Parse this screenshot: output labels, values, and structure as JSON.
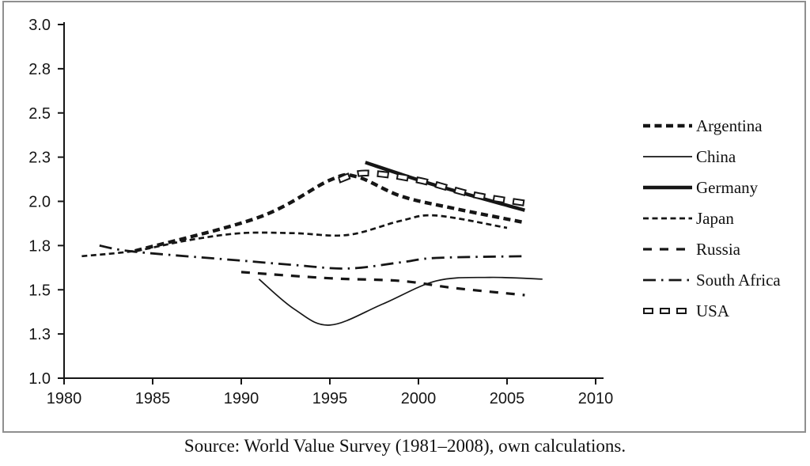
{
  "page": {
    "background": "#ffffff",
    "frame_border_color": "#8f8f8f",
    "ink_color": "#161616"
  },
  "caption": "Source: World Value Survey (1981–2008), own calculations.",
  "chart_data": {
    "type": "line",
    "title": "",
    "xlabel": "",
    "ylabel": "",
    "grid": false,
    "legend_position": "right",
    "x_axis": {
      "min": 1980,
      "max": 2010,
      "ticks": [
        {
          "label": "1980",
          "value": 1980
        },
        {
          "label": "1985",
          "value": 1985
        },
        {
          "label": "1990",
          "value": 1990
        },
        {
          "label": "1995",
          "value": 1995
        },
        {
          "label": "2000",
          "value": 2000
        },
        {
          "label": "2005",
          "value": 2005
        },
        {
          "label": "2010",
          "value": 2010
        }
      ]
    },
    "y_axis": {
      "min": 1.0,
      "max": 3.0,
      "ticks": [
        {
          "label": "3.0",
          "value": 3.0
        },
        {
          "label": "2.8",
          "value": 2.75
        },
        {
          "label": "2.5",
          "value": 2.5
        },
        {
          "label": "2.3",
          "value": 2.25
        },
        {
          "label": "2.0",
          "value": 2.0
        },
        {
          "label": "1.8",
          "value": 1.75
        },
        {
          "label": "1.5",
          "value": 1.5
        },
        {
          "label": "1.3",
          "value": 1.25
        },
        {
          "label": "1.0",
          "value": 1.0
        }
      ]
    },
    "series": [
      {
        "name": "Argentina",
        "line_style": "thick-dashed",
        "points": [
          [
            1984,
            1.72
          ],
          [
            1991,
            1.91
          ],
          [
            1995,
            2.12
          ],
          [
            1996.5,
            2.14
          ],
          [
            1999,
            2.03
          ],
          [
            2002,
            1.96
          ],
          [
            2006,
            1.88
          ]
        ]
      },
      {
        "name": "China",
        "line_style": "thin-solid",
        "points": [
          [
            1991,
            1.56
          ],
          [
            1993,
            1.39
          ],
          [
            1995,
            1.3
          ],
          [
            1998,
            1.42
          ],
          [
            2001,
            1.55
          ],
          [
            2004,
            1.57
          ],
          [
            2007,
            1.56
          ]
        ]
      },
      {
        "name": "Germany",
        "line_style": "thick-solid",
        "points": [
          [
            1997,
            2.22
          ],
          [
            2001,
            2.09
          ],
          [
            2006,
            1.95
          ]
        ]
      },
      {
        "name": "Japan",
        "line_style": "fine-dashed",
        "points": [
          [
            1981,
            1.69
          ],
          [
            1984,
            1.72
          ],
          [
            1987,
            1.78
          ],
          [
            1990,
            1.82
          ],
          [
            1993,
            1.82
          ],
          [
            1996,
            1.81
          ],
          [
            1999,
            1.89
          ],
          [
            2001,
            1.92
          ],
          [
            2005,
            1.85
          ]
        ]
      },
      {
        "name": "Russia",
        "line_style": "long-dashed",
        "points": [
          [
            1990,
            1.6
          ],
          [
            1995,
            1.565
          ],
          [
            1999,
            1.55
          ],
          [
            2002,
            1.51
          ],
          [
            2006,
            1.47
          ]
        ]
      },
      {
        "name": "South Africa",
        "line_style": "dash-dot",
        "points": [
          [
            1982,
            1.75
          ],
          [
            1984,
            1.715
          ],
          [
            1990,
            1.665
          ],
          [
            1993,
            1.64
          ],
          [
            1996,
            1.62
          ],
          [
            1999,
            1.655
          ],
          [
            2001,
            1.68
          ],
          [
            2006,
            1.69
          ]
        ]
      },
      {
        "name": "USA",
        "line_style": "hollow-dashed",
        "points": [
          [
            1995.5,
            2.12
          ],
          [
            1997,
            2.16
          ],
          [
            2000,
            2.12
          ],
          [
            2003,
            2.04
          ],
          [
            2006,
            1.99
          ]
        ]
      }
    ]
  }
}
